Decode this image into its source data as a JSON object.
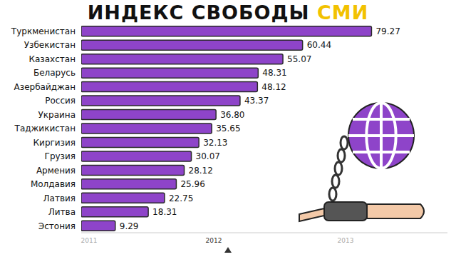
{
  "chart_data": {
    "type": "bar",
    "title": "ИНДЕКС СВОБОДЫ СМИ",
    "orientation": "horizontal",
    "categories": [
      "Туркменистан",
      "Узбекистан",
      "Казахстан",
      "Беларусь",
      "Азербайджан",
      "Россия",
      "Украина",
      "Таджикистан",
      "Киргизия",
      "Грузия",
      "Армения",
      "Молдавия",
      "Латвия",
      "Литва",
      "Эстония"
    ],
    "values": [
      79.27,
      60.44,
      55.07,
      48.31,
      48.12,
      43.37,
      36.8,
      35.65,
      32.13,
      30.07,
      28.12,
      25.96,
      22.75,
      18.31,
      9.29
    ],
    "value_labels": [
      "79.27",
      "60.44",
      "55.07",
      "48.31",
      "48.12",
      "43.37",
      "36.80",
      "35.65",
      "32.13",
      "30.07",
      "28.12",
      "25.96",
      "22.75",
      "18.31",
      "9.29"
    ],
    "color": "#8e44c9",
    "xlim": [
      0,
      100
    ],
    "data_labels": true,
    "tick_labels": "y",
    "grid": false,
    "annotations": [
      "2011",
      "2012",
      "2013"
    ]
  }
}
